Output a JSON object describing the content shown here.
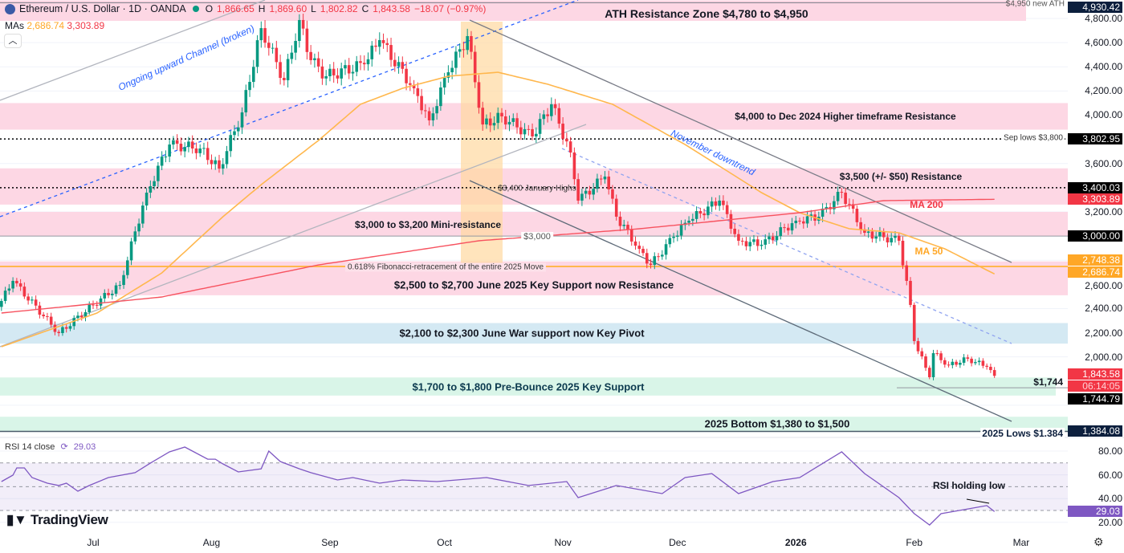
{
  "header": {
    "symbol": "Ethereum / U.S. Dollar · 1D · OANDA",
    "o_label": "O",
    "o": "1,866.65",
    "h_label": "H",
    "h": "1,869.60",
    "l_label": "L",
    "l": "1,802.82",
    "c_label": "C",
    "c": "1,843.58",
    "change": "−18.07 (−0.97%)",
    "mas_label": "MAs",
    "ma50": "2,686.74",
    "ma200": "3,303.89",
    "collapse_icon": "chevron-up-icon"
  },
  "rsi_header": {
    "label": "RSI 14 close",
    "value": "29.03"
  },
  "logo": "TradingView",
  "colors": {
    "up": "#089981",
    "down": "#f23645",
    "ma50": "#ffb74d",
    "ma200": "#f7525f",
    "rsi": "#7e57c2",
    "zone_pink": "#fdd7e4",
    "zone_blue": "#d4e9f3",
    "zone_green": "#d9f5e8",
    "fib": "#ffd8a0"
  },
  "annotations": {
    "ath_zone": "ATH Resistance Zone $4,780 to $4,950",
    "htf": "$4,000 to Dec 2024 Higher timeframe Resistance",
    "nov_down": "November downtrend",
    "channel": "Ongoing upward Channel (broken)",
    "sep_lows": "Sep lows $3,800",
    "r3500": "$3,500 (+/- $50) Resistance",
    "jan_highs": "$3,400 January Highs",
    "ma200": "MA 200",
    "ma50": "MA 50",
    "mini": "$3,000 to $3,200 Mini-resistance",
    "l3000": "$3,000",
    "fib": "0.618% Fibonacci-retracement of the entire 2025 Move",
    "june": "$2,500 to $2,700 June 2025 Key Support now Resistance",
    "war": "$2,100 to $2,300 June War support now Key Pivot",
    "prebounce": "$1,700 to $1,800 Pre-Bounce 2025 Key Support",
    "l1744": "$1,744",
    "bottom": "2025 Bottom $1,380 to $1,500",
    "lows": "2025 Lows $1.384",
    "ath": "$4,950 new ATH",
    "rsi_low": "RSI holding low"
  },
  "price_tags": [
    {
      "v": "4,930.42",
      "bg": "#0c1f3d"
    },
    {
      "v": "3,802.95",
      "bg": "#000000"
    },
    {
      "v": "3,400.03",
      "bg": "#000000"
    },
    {
      "v": "3,303.89",
      "bg": "#f23645"
    },
    {
      "v": "3,000.00",
      "bg": "#000000"
    },
    {
      "v": "2,748.38",
      "bg": "#ffa726"
    },
    {
      "v": "2,686.74",
      "bg": "#ffa726"
    },
    {
      "v": "1,843.58",
      "bg": "#f23645"
    },
    {
      "v": "1,744.79",
      "bg": "#000000"
    },
    {
      "v": "1,384.08",
      "bg": "#0c1f3d"
    }
  ],
  "countdown": "06:14:05",
  "rsi_tag": "29.03",
  "settings_icon": "gear-icon",
  "chart_data": {
    "type": "candlestick",
    "symbol": "ETHUSD",
    "interval": "1D",
    "y_ticks": [
      "4,800.00",
      "4,600.00",
      "4,400.00",
      "4,200.00",
      "4,000.00",
      "3,600.00",
      "3,200.00",
      "2,600.00",
      "2,400.00",
      "2,200.00",
      "2,000.00"
    ],
    "rsi_ticks": [
      "80.00",
      "60.00",
      "40.00",
      "20.00"
    ],
    "x_ticks": [
      "Jul",
      "Aug",
      "Sep",
      "Oct",
      "Nov",
      "Dec",
      "2026",
      "Feb",
      "Mar"
    ],
    "x_range": [
      "2025-06-07",
      "2026-03-05"
    ],
    "ylim": [
      1300,
      4960
    ],
    "grid": true,
    "close_keyframes": [
      [
        "2025-06-07",
        2463
      ],
      [
        "2025-06-10",
        2629
      ],
      [
        "2025-06-22",
        2197
      ],
      [
        "2025-07-01",
        2430
      ],
      [
        "2025-07-08",
        2595
      ],
      [
        "2025-07-15",
        3359
      ],
      [
        "2025-07-21",
        3757
      ],
      [
        "2025-07-29",
        3724
      ],
      [
        "2025-08-03",
        3558
      ],
      [
        "2025-08-09",
        4023
      ],
      [
        "2025-08-14",
        4720
      ],
      [
        "2025-08-20",
        4289
      ],
      [
        "2025-08-24",
        4787
      ],
      [
        "2025-08-27",
        4455
      ],
      [
        "2025-08-31",
        4322
      ],
      [
        "2025-09-10",
        4421
      ],
      [
        "2025-09-14",
        4621
      ],
      [
        "2025-09-23",
        4222
      ],
      [
        "2025-09-27",
        3957
      ],
      [
        "2025-10-02",
        4355
      ],
      [
        "2025-10-07",
        4654
      ],
      [
        "2025-10-11",
        3923
      ],
      [
        "2025-10-16",
        3990
      ],
      [
        "2025-10-24",
        3824
      ],
      [
        "2025-10-29",
        4090
      ],
      [
        "2025-11-03",
        3691
      ],
      [
        "2025-11-05",
        3293
      ],
      [
        "2025-11-12",
        3492
      ],
      [
        "2025-11-15",
        3160
      ],
      [
        "2025-11-21",
        2894
      ],
      [
        "2025-11-24",
        2761
      ],
      [
        "2025-11-30",
        2994
      ],
      [
        "2025-12-04",
        3127
      ],
      [
        "2025-12-12",
        3293
      ],
      [
        "2025-12-17",
        2961
      ],
      [
        "2025-12-23",
        2928
      ],
      [
        "2026-01-01",
        3127
      ],
      [
        "2026-01-07",
        3160
      ],
      [
        "2026-01-13",
        3359
      ],
      [
        "2026-01-19",
        3027
      ],
      [
        "2026-01-28",
        2961
      ],
      [
        "2026-01-31",
        2430
      ],
      [
        "2026-02-01",
        2131
      ],
      [
        "2026-02-05",
        1832
      ],
      [
        "2026-02-06",
        2031
      ],
      [
        "2026-02-10",
        1932
      ],
      [
        "2026-02-15",
        1985
      ],
      [
        "2026-02-20",
        1918
      ],
      [
        "2026-02-22",
        1843.58
      ]
    ],
    "ma50": [
      [
        "2025-06-07",
        2084
      ],
      [
        "2025-07-02",
        2363
      ],
      [
        "2025-07-19",
        2695
      ],
      [
        "2025-08-04",
        3160
      ],
      [
        "2025-08-14",
        3425
      ],
      [
        "2025-08-29",
        3791
      ],
      [
        "2025-09-09",
        4090
      ],
      [
        "2025-09-20",
        4222
      ],
      [
        "2025-10-02",
        4322
      ],
      [
        "2025-10-15",
        4355
      ],
      [
        "2025-10-28",
        4256
      ],
      [
        "2025-11-14",
        4090
      ],
      [
        "2025-12-03",
        3757
      ],
      [
        "2025-12-23",
        3359
      ],
      [
        "2026-01-02",
        3193
      ],
      [
        "2026-01-15",
        3060
      ],
      [
        "2026-01-28",
        3027
      ],
      [
        "2026-02-09",
        2894
      ],
      [
        "2026-02-22",
        2686.74
      ]
    ],
    "ma200": [
      [
        "2025-06-07",
        2363
      ],
      [
        "2025-07-19",
        2496
      ],
      [
        "2025-08-29",
        2761
      ],
      [
        "2025-10-10",
        2961
      ],
      [
        "2025-11-21",
        3060
      ],
      [
        "2026-01-02",
        3193
      ],
      [
        "2026-01-24",
        3293
      ],
      [
        "2026-02-22",
        3303.89
      ]
    ],
    "rsi": [
      [
        "2025-06-07",
        54.3
      ],
      [
        "2025-06-10",
        59.7
      ],
      [
        "2025-06-11",
        65.8
      ],
      [
        "2025-06-13",
        65.8
      ],
      [
        "2025-06-15",
        57.7
      ],
      [
        "2025-06-19",
        53
      ],
      [
        "2025-06-22",
        51
      ],
      [
        "2025-06-24",
        53
      ],
      [
        "2025-06-27",
        46.2
      ],
      [
        "2025-06-30",
        51
      ],
      [
        "2025-07-05",
        57.7
      ],
      [
        "2025-07-12",
        61.8
      ],
      [
        "2025-07-16",
        69.9
      ],
      [
        "2025-07-21",
        79.3
      ],
      [
        "2025-07-25",
        83.4
      ],
      [
        "2025-07-31",
        73.2
      ],
      [
        "2025-08-02",
        73.2
      ],
      [
        "2025-08-04",
        69.2
      ],
      [
        "2025-08-08",
        62.4
      ],
      [
        "2025-08-14",
        65.1
      ],
      [
        "2025-08-16",
        80
      ],
      [
        "2025-08-19",
        71.2
      ],
      [
        "2025-08-24",
        65.1
      ],
      [
        "2025-08-27",
        61.8
      ],
      [
        "2025-09-03",
        55.7
      ],
      [
        "2025-09-07",
        57.7
      ],
      [
        "2025-09-14",
        53
      ],
      [
        "2025-09-20",
        55.7
      ],
      [
        "2025-09-29",
        54.3
      ],
      [
        "2025-10-12",
        57.7
      ],
      [
        "2025-10-23",
        51
      ],
      [
        "2025-11-02",
        54.3
      ],
      [
        "2025-11-05",
        40.8
      ],
      [
        "2025-11-15",
        51
      ],
      [
        "2025-11-27",
        44.2
      ],
      [
        "2025-12-03",
        57.7
      ],
      [
        "2025-12-10",
        61.1
      ],
      [
        "2025-12-17",
        44.2
      ],
      [
        "2025-12-26",
        54.3
      ],
      [
        "2026-01-02",
        57.7
      ],
      [
        "2026-01-13",
        79.3
      ],
      [
        "2026-01-19",
        61.1
      ],
      [
        "2026-01-28",
        40.8
      ],
      [
        "2026-02-01",
        27.3
      ],
      [
        "2026-02-05",
        17.8
      ],
      [
        "2026-02-08",
        27.3
      ],
      [
        "2026-02-14",
        30.7
      ],
      [
        "2026-02-20",
        34.1
      ],
      [
        "2026-02-22",
        29.03
      ]
    ],
    "rsi_levels": [
      70,
      50,
      30
    ],
    "zones": [
      {
        "from": 4780,
        "to": 4950,
        "color": "pink"
      },
      {
        "from": 3880,
        "to": 4100,
        "color": "pink"
      },
      {
        "from": 3260,
        "to": 3560,
        "color": "pink"
      },
      {
        "from": 3000,
        "to": 3200,
        "color": "pink"
      },
      {
        "from": 2510,
        "to": 2790,
        "color": "pink"
      },
      {
        "from": 2110,
        "to": 2280,
        "color": "blue"
      },
      {
        "from": 1680,
        "to": 1830,
        "color": "green"
      },
      {
        "from": 1380,
        "to": 1505,
        "color": "green"
      }
    ],
    "levels": [
      {
        "price": 4930.42,
        "style": "solid"
      },
      {
        "price": 3802.95,
        "style": "dotted"
      },
      {
        "price": 3400.03,
        "style": "dotted"
      },
      {
        "price": 3000,
        "style": "solid"
      },
      {
        "price": 2748.38,
        "style": "fib"
      },
      {
        "price": 1744.79,
        "style": "solid"
      },
      {
        "price": 1384.08,
        "style": "solid"
      }
    ]
  }
}
